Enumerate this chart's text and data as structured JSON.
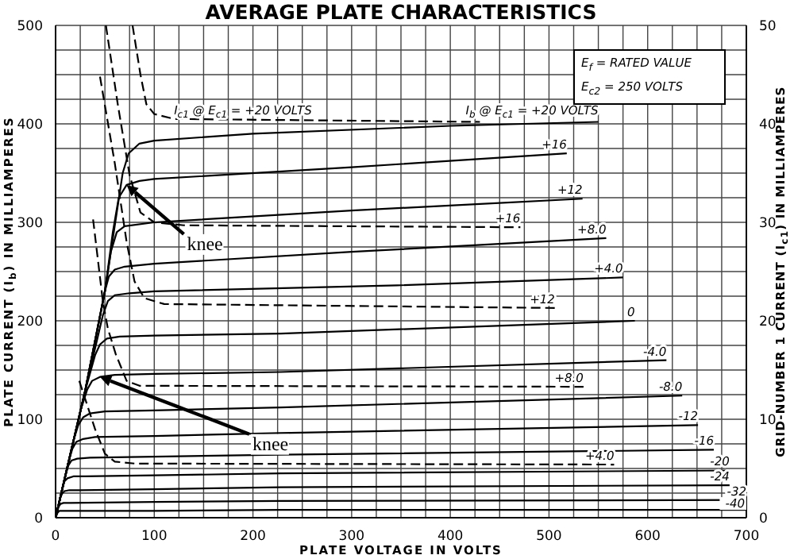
{
  "chart_data": {
    "type": "line",
    "title": "AVERAGE PLATE CHARACTERISTICS",
    "xlabel": "PLATE VOLTAGE IN VOLTS",
    "ylabel": "PLATE CURRENT (I$_{b}$) IN MILLIAMPERES",
    "y2label": "GRID-NUMBER 1 CURRENT (I$_{c1}$) IN MILLIAMPERES",
    "xlim": [
      0,
      700
    ],
    "ylim": [
      0,
      500
    ],
    "y2lim": [
      0,
      50
    ],
    "xticks": [
      0,
      {
        "value": 25,
        "label": null
      },
      {
        "value": 50,
        "label": null
      },
      {
        "value": 75,
        "label": null
      },
      100,
      {
        "value": 125,
        "label": null
      },
      {
        "value": 150,
        "label": null
      },
      {
        "value": 175,
        "label": null
      },
      200,
      {
        "value": 225,
        "label": null
      },
      {
        "value": 250,
        "label": null
      },
      {
        "value": 275,
        "label": null
      },
      300,
      {
        "value": 325,
        "label": null
      },
      {
        "value": 350,
        "label": null
      },
      {
        "value": 375,
        "label": null
      },
      400,
      {
        "value": 425,
        "label": null
      },
      {
        "value": 450,
        "label": null
      },
      {
        "value": 475,
        "label": null
      },
      500,
      {
        "value": 525,
        "label": null
      },
      {
        "value": 550,
        "label": null
      },
      {
        "value": 575,
        "label": null
      },
      600,
      {
        "value": 625,
        "label": null
      },
      {
        "value": 650,
        "label": null
      },
      {
        "value": 675,
        "label": null
      },
      700
    ],
    "yticks": [
      0,
      {
        "value": 25,
        "label": null
      },
      {
        "value": 50,
        "label": null
      },
      {
        "value": 75,
        "label": null
      },
      100,
      {
        "value": 125,
        "label": null
      },
      {
        "value": 150,
        "label": null
      },
      {
        "value": 175,
        "label": null
      },
      200,
      {
        "value": 225,
        "label": null
      },
      {
        "value": 250,
        "label": null
      },
      {
        "value": 275,
        "label": null
      },
      300,
      {
        "value": 325,
        "label": null
      },
      {
        "value": 350,
        "label": null
      },
      {
        "value": 375,
        "label": null
      },
      400,
      {
        "value": 425,
        "label": null
      },
      {
        "value": 450,
        "label": null
      },
      {
        "value": 475,
        "label": null
      },
      500
    ],
    "y2ticks": [
      0,
      10,
      20,
      30,
      40,
      50
    ],
    "grid": true,
    "legend": false,
    "marker": "none",
    "series": [
      {
        "name": "I$_{b}$ @ E$_{c1}$ = +20 VOLTS",
        "color": "#000000",
        "x": [
          0,
          30,
          50,
          62,
          68,
          74,
          85,
          100,
          200,
          400,
          550
        ],
        "values": [
          0,
          129,
          230,
          310,
          350,
          370,
          380,
          383,
          390,
          398,
          402
        ]
      },
      {
        "name": "+16",
        "color": "#000000",
        "x": [
          0,
          30,
          50,
          58,
          64,
          72,
          85,
          100,
          300,
          518
        ],
        "values": [
          0,
          129,
          230,
          290,
          325,
          338,
          342,
          344,
          356,
          370
        ]
      },
      {
        "name": "+12",
        "color": "#000000",
        "x": [
          0,
          30,
          50,
          56,
          62,
          70,
          100,
          300,
          534
        ],
        "values": [
          0,
          129,
          230,
          270,
          290,
          296,
          300,
          312,
          324
        ]
      },
      {
        "name": "+8.0",
        "color": "#000000",
        "x": [
          0,
          30,
          50,
          54,
          60,
          70,
          100,
          300,
          558
        ],
        "values": [
          0,
          129,
          230,
          245,
          252,
          255,
          258,
          270,
          284
        ]
      },
      {
        "name": "+4.0",
        "color": "#000000",
        "x": [
          0,
          30,
          48,
          53,
          60,
          75,
          100,
          346,
          575
        ],
        "values": [
          0,
          129,
          206,
          220,
          226,
          228,
          230,
          236,
          244
        ]
      },
      {
        "name": "0",
        "color": "#000000",
        "x": [
          0,
          30,
          40,
          45,
          52,
          65,
          100,
          228,
          587
        ],
        "values": [
          0,
          129,
          165,
          176,
          182,
          184,
          185,
          187,
          200
        ]
      },
      {
        "name": "-4.0",
        "color": "#000000",
        "x": [
          0,
          25,
          32,
          37,
          45,
          60,
          100,
          228,
          619
        ],
        "values": [
          0,
          108,
          130,
          139,
          143,
          145,
          146,
          148,
          160
        ]
      },
      {
        "name": "-8.0",
        "color": "#000000",
        "x": [
          0,
          18,
          23,
          28,
          35,
          50,
          100,
          228,
          635
        ],
        "values": [
          0,
          78,
          94,
          102,
          106,
          108,
          109,
          112,
          124
        ]
      },
      {
        "name": "-12",
        "color": "#000000",
        "x": [
          0,
          13,
          17,
          21,
          28,
          40,
          100,
          228,
          651
        ],
        "values": [
          0,
          56,
          70,
          77,
          80,
          82,
          83,
          86,
          94
        ]
      },
      {
        "name": "-16",
        "color": "#000000",
        "x": [
          0,
          10,
          13,
          16,
          22,
          35,
          100,
          228,
          667
        ],
        "values": [
          0,
          43,
          53,
          58,
          60,
          61,
          62,
          64,
          69
        ]
      },
      {
        "name": "-20",
        "color": "#000000",
        "x": [
          0,
          7,
          9,
          12,
          18,
          30,
          100,
          228,
          683
        ],
        "values": [
          0,
          30,
          37,
          40,
          42,
          42,
          43,
          45,
          48
        ]
      },
      {
        "name": "-24",
        "color": "#000000",
        "x": [
          0,
          5,
          7,
          9,
          14,
          25,
          100,
          228,
          683
        ],
        "values": [
          0,
          21,
          25,
          27,
          28,
          28,
          29,
          31,
          33
        ]
      },
      {
        "name": "-32",
        "color": "#000000",
        "x": [
          0,
          3,
          5,
          8,
          15,
          100,
          228,
          700
        ],
        "values": [
          0,
          11,
          14,
          15,
          15,
          16,
          17,
          18
        ]
      },
      {
        "name": "-40",
        "color": "#000000",
        "x": [
          0,
          2,
          4,
          8,
          100,
          228,
          700
        ],
        "values": [
          0,
          5,
          7,
          7,
          7,
          8,
          8
        ]
      },
      {
        "name": "I$_{c1}$ @ E$_{c1}$ = +20 VOLTS",
        "color": "#000000",
        "axis": "y2",
        "line_style": "dashed",
        "x": [
          78,
          86,
          92,
          100,
          120,
          430
        ],
        "values": [
          50,
          45,
          42,
          41,
          40.5,
          40.2
        ]
      },
      {
        "name": "+16",
        "color": "#000000",
        "axis": "y2",
        "line_style": "dashed",
        "x": [
          51,
          63,
          75,
          86,
          100,
          130,
          471
        ],
        "values": [
          50,
          42,
          34.8,
          31,
          30,
          29.7,
          29.5
        ]
      },
      {
        "name": "+12",
        "color": "#000000",
        "axis": "y2",
        "line_style": "dashed",
        "x": [
          45,
          60,
          72,
          80,
          90,
          110,
          506
        ],
        "values": [
          44.8,
          36,
          28,
          24,
          22.3,
          21.7,
          21.3
        ]
      },
      {
        "name": "+8.0",
        "color": "#000000",
        "axis": "y2",
        "line_style": "dashed",
        "x": [
          38,
          48,
          53,
          61,
          72,
          85,
          535
        ],
        "values": [
          30.3,
          21.9,
          19.2,
          16.6,
          13.9,
          13.4,
          13.3
        ]
      },
      {
        "name": "+4.0",
        "color": "#000000",
        "axis": "y2",
        "line_style": "dashed",
        "x": [
          24,
          40,
          50,
          60,
          80,
          566
        ],
        "values": [
          13.9,
          9,
          6.5,
          5.7,
          5.5,
          5.4
        ]
      }
    ],
    "line_style": "solid",
    "annotations": [
      "E$_{f}$ = RATED VALUE",
      "E$_{c2}$ = 250 VOLTS",
      {
        "text": "knee",
        "x": 72,
        "y": 338
      },
      {
        "text": "knee",
        "x": 45,
        "y": 143
      }
    ]
  }
}
